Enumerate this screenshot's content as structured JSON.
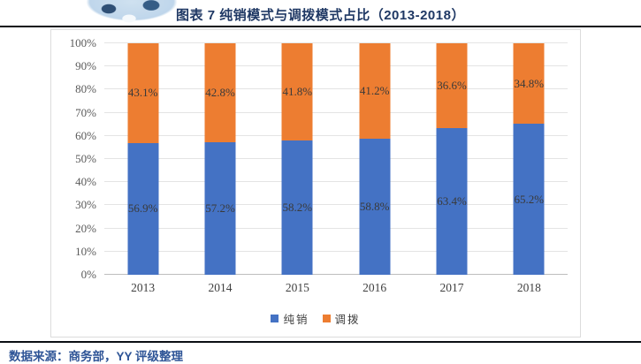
{
  "header": {
    "title": "图表 7 纯销模式与调拨模式占比（2013-2018）"
  },
  "footer": {
    "source": "数据来源：商务部，YY 评级整理"
  },
  "colors": {
    "title_text": "#1F3864",
    "source_text": "#2F5597",
    "divider": "#0b0f14",
    "series_blue": "#4472C4",
    "series_orange": "#ED7D31"
  },
  "chart_data": {
    "type": "bar",
    "subtype": "stacked-100-percent",
    "title": "图表 7 纯销模式与调拨模式占比（2013-2018）",
    "categories": [
      "2013",
      "2014",
      "2015",
      "2016",
      "2017",
      "2018"
    ],
    "series": [
      {
        "name": "纯销",
        "color": "#4472C4",
        "values": [
          56.9,
          57.2,
          58.2,
          58.8,
          63.4,
          65.2
        ]
      },
      {
        "name": "调拨",
        "color": "#ED7D31",
        "values": [
          43.1,
          42.8,
          41.8,
          41.2,
          36.6,
          34.8
        ]
      }
    ],
    "value_suffix": "%",
    "xlabel": "",
    "ylabel": "",
    "ylim": [
      0,
      100
    ],
    "ytick_step": 10,
    "grid": true,
    "legend_position": "bottom"
  }
}
